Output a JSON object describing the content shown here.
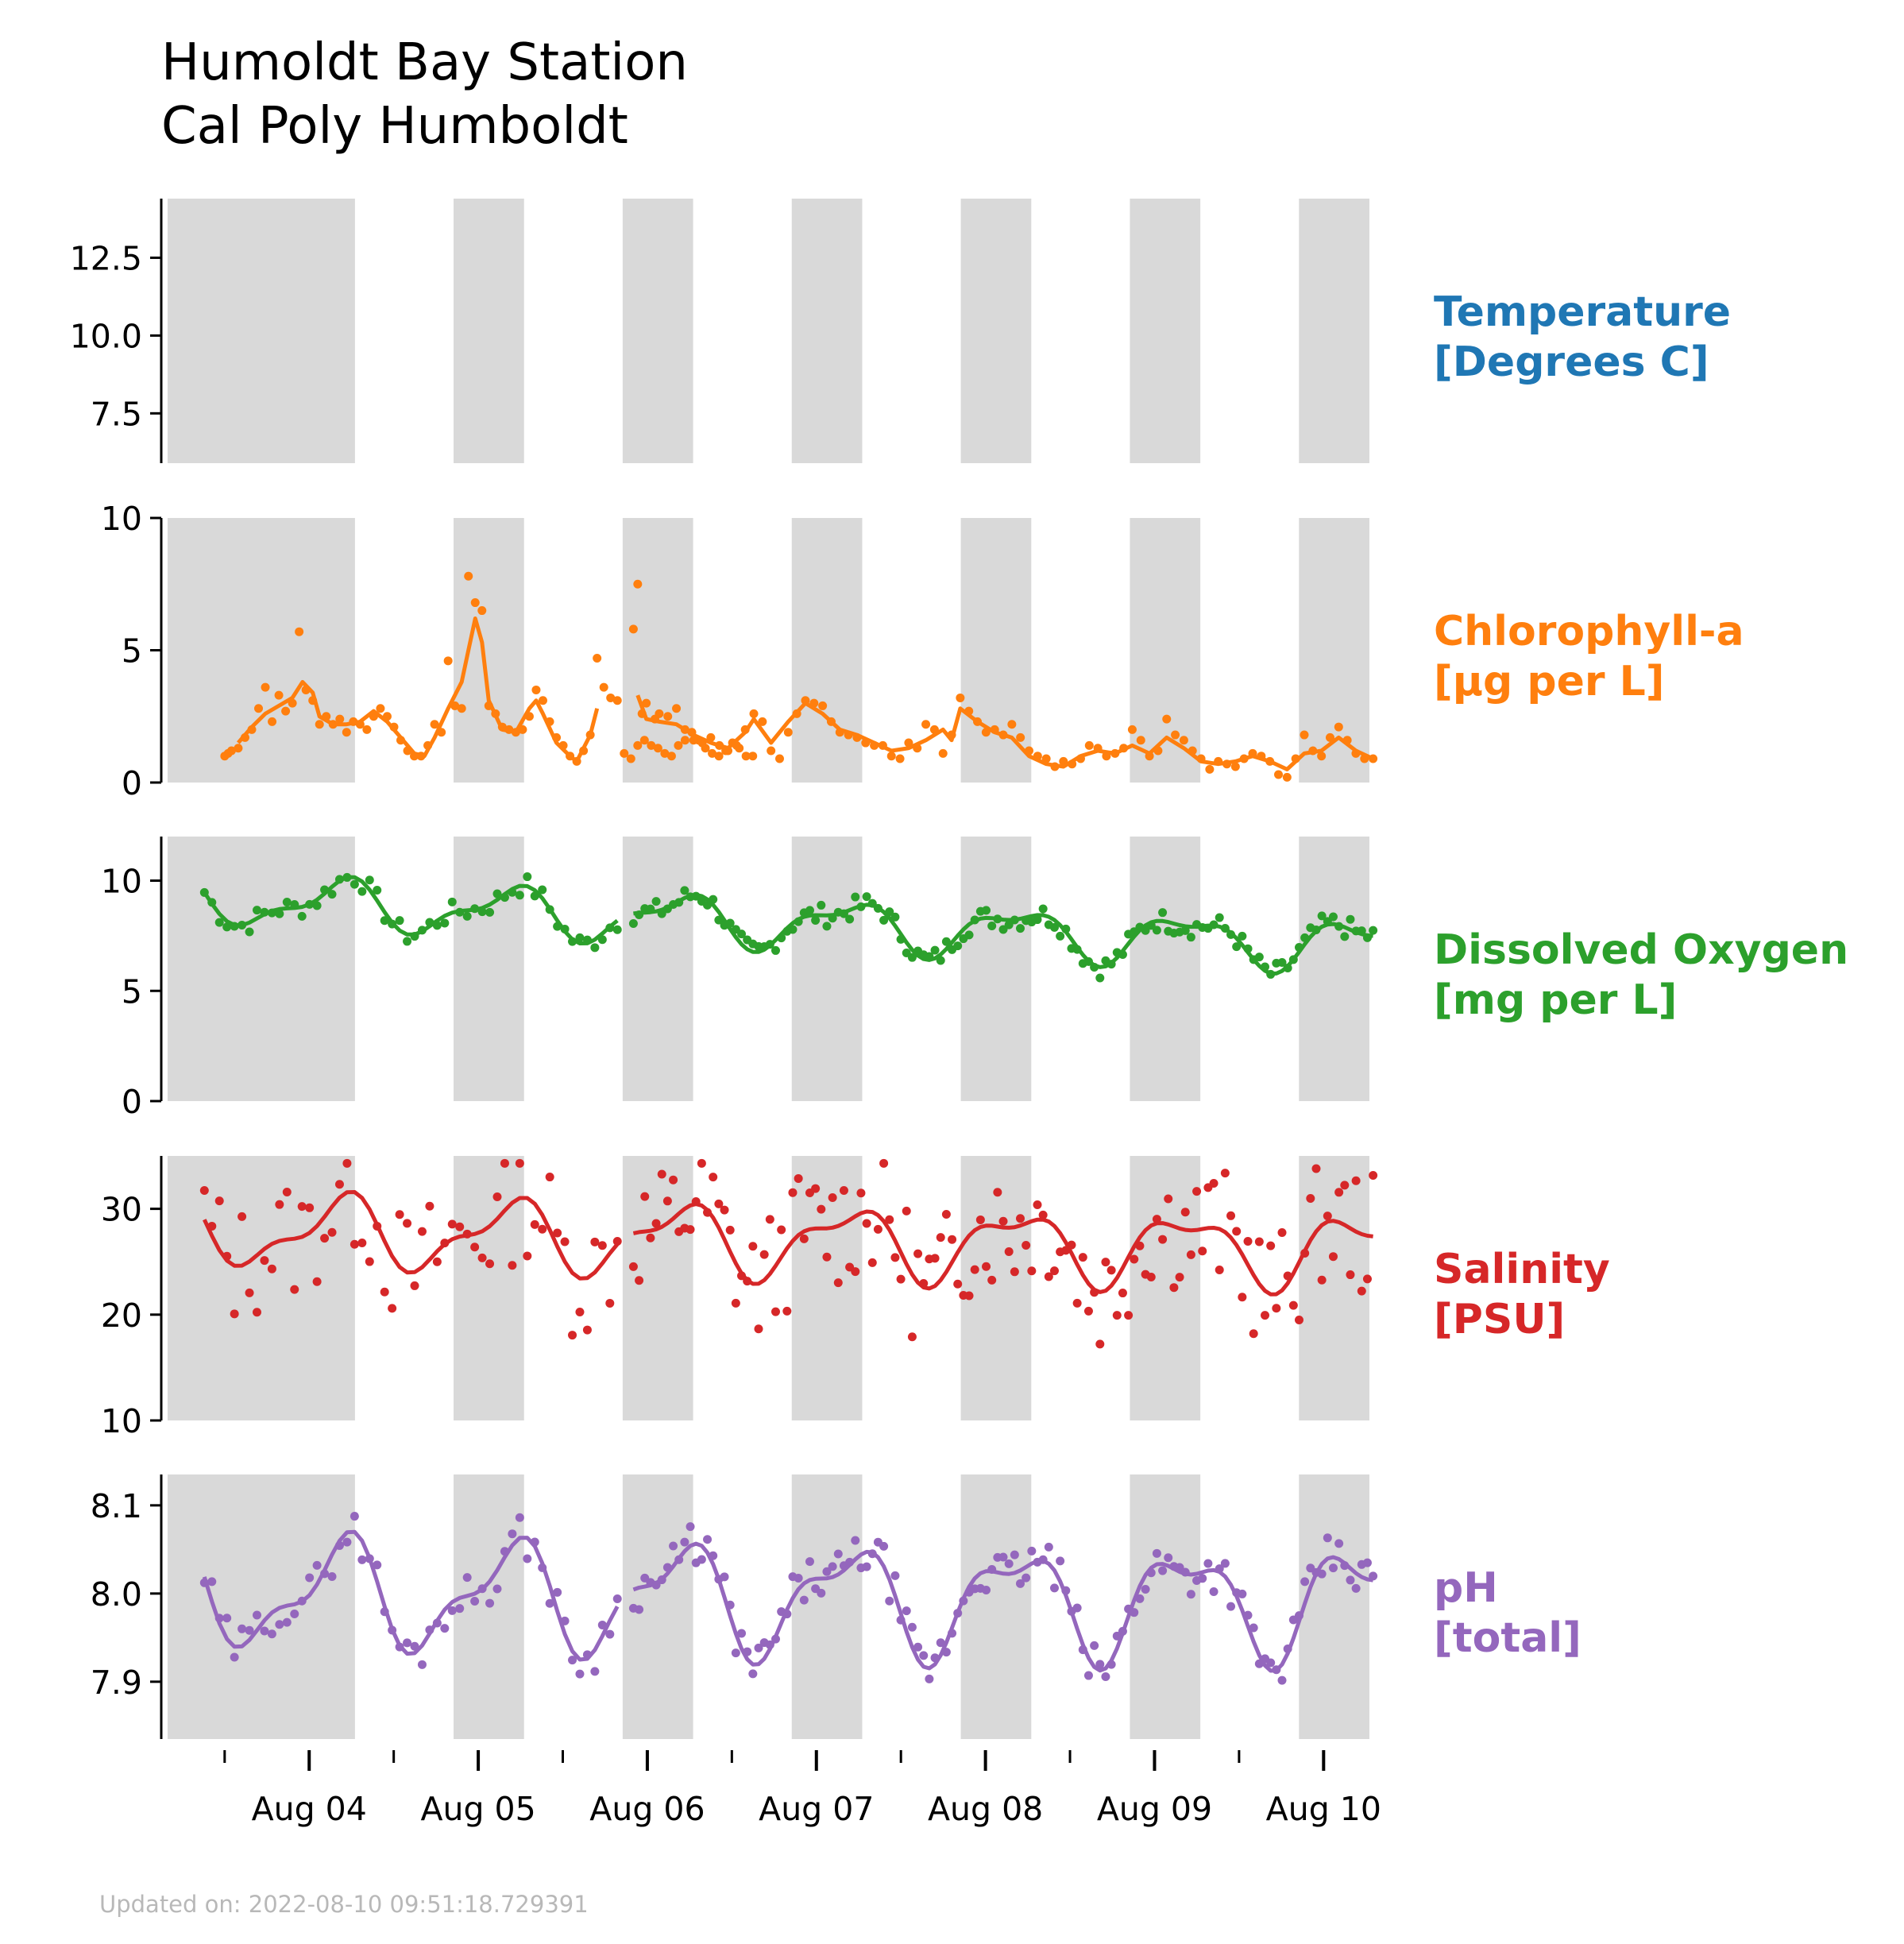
{
  "title_lines": [
    "Humoldt Bay Station",
    "Cal Poly Humboldt"
  ],
  "footer": "Updated on: 2022-08-10 09:51:18.729391",
  "chart_data": {
    "type": "line",
    "x_axis": {
      "ticks": [
        "Aug 04",
        "Aug 05",
        "Aug 06",
        "Aug 07",
        "Aug 08",
        "Aug 09",
        "Aug 10"
      ],
      "range": [
        "2022-08-03 03:00",
        "2022-08-10 10:00"
      ]
    },
    "night_bands": [
      [
        "2022-08-03 03:00",
        "2022-08-04 06:30"
      ],
      [
        "2022-08-04 20:30",
        "2022-08-05 06:30"
      ],
      [
        "2022-08-05 20:30",
        "2022-08-06 06:30"
      ],
      [
        "2022-08-06 20:30",
        "2022-08-07 06:30"
      ],
      [
        "2022-08-07 20:30",
        "2022-08-08 06:30"
      ],
      [
        "2022-08-08 20:30",
        "2022-08-09 06:30"
      ],
      [
        "2022-08-09 20:30",
        "2022-08-10 06:30"
      ]
    ],
    "panels": [
      {
        "label": [
          "Temperature",
          "[Degrees C]"
        ],
        "color": "#1f77b4",
        "ylim": [
          5.9,
          14.4
        ],
        "yticks": [
          7.5,
          10.0,
          12.5
        ],
        "tick_decimals": 1,
        "points": [],
        "smooth": []
      },
      {
        "label": [
          "Chlorophyll-a",
          "[µg per L]"
        ],
        "color": "#ff7f0e",
        "ylim": [
          0,
          10
        ],
        "yticks": [
          0,
          5,
          10
        ],
        "tick_decimals": 0,
        "points": [
          [
            3.0,
            1.0
          ],
          [
            3.5,
            1.1
          ],
          [
            4.0,
            1.2
          ],
          [
            5.0,
            1.3
          ],
          [
            6.0,
            1.7
          ],
          [
            7.0,
            2.0
          ],
          [
            8.0,
            2.8
          ],
          [
            9.0,
            3.6
          ],
          [
            10.0,
            2.3
          ],
          [
            11.0,
            3.3
          ],
          [
            12.0,
            2.7
          ],
          [
            13.0,
            3.0
          ],
          [
            14.0,
            5.7
          ],
          [
            15.0,
            3.5
          ],
          [
            16.0,
            3.1
          ],
          [
            17.0,
            2.2
          ],
          [
            18.0,
            2.5
          ],
          [
            19.0,
            2.2
          ],
          [
            20.0,
            2.4
          ],
          [
            21.0,
            1.9
          ],
          [
            22.0,
            2.3
          ],
          [
            23.0,
            2.2
          ],
          [
            24.0,
            2.0
          ],
          [
            25.0,
            2.5
          ],
          [
            26.0,
            2.8
          ],
          [
            27.0,
            2.5
          ],
          [
            28.0,
            2.1
          ],
          [
            29.0,
            1.6
          ],
          [
            30.0,
            1.2
          ],
          [
            31.0,
            1.0
          ],
          [
            32.0,
            1.0
          ],
          [
            33.0,
            1.4
          ],
          [
            34.0,
            2.2
          ],
          [
            35.0,
            1.9
          ],
          [
            36.0,
            4.6
          ],
          [
            37.0,
            2.9
          ],
          [
            38.0,
            2.8
          ],
          [
            39.0,
            7.8
          ],
          [
            40.0,
            6.8
          ],
          [
            41.0,
            6.5
          ],
          [
            42.0,
            2.9
          ],
          [
            43.0,
            2.6
          ],
          [
            44.0,
            2.1
          ],
          [
            45.0,
            2.0
          ],
          [
            46.0,
            1.9
          ],
          [
            47.0,
            2.0
          ],
          [
            48.0,
            2.5
          ],
          [
            49.0,
            3.5
          ],
          [
            50.0,
            3.1
          ],
          [
            51.0,
            2.3
          ],
          [
            52.0,
            1.7
          ],
          [
            53.0,
            1.4
          ],
          [
            54.0,
            1.0
          ],
          [
            55.0,
            0.8
          ],
          [
            56.0,
            1.2
          ],
          [
            57.0,
            1.8
          ],
          [
            58.0,
            4.7
          ],
          [
            59.0,
            3.6
          ],
          [
            60.0,
            3.2
          ],
          [
            61.0,
            3.1
          ],
          [
            62.0,
            1.1
          ],
          [
            63.0,
            0.9
          ],
          [
            64.0,
            1.4
          ],
          [
            65.0,
            1.6
          ],
          [
            66.0,
            1.4
          ],
          [
            67.0,
            1.3
          ],
          [
            68.0,
            1.1
          ],
          [
            69.0,
            1.0
          ],
          [
            70.0,
            1.4
          ],
          [
            71.0,
            1.6
          ],
          [
            72.0,
            1.9
          ],
          [
            73.0,
            1.6
          ],
          [
            74.0,
            1.3
          ],
          [
            75.0,
            1.1
          ],
          [
            76.0,
            1.0
          ],
          [
            77.0,
            1.2
          ],
          [
            78.0,
            1.5
          ],
          [
            79.0,
            1.3
          ],
          [
            80.0,
            1.0
          ],
          [
            81.0,
            1.0
          ]
        ],
        "smooth": [
          [
            5,
            1.5
          ],
          [
            7,
            2.1
          ],
          [
            9,
            2.6
          ],
          [
            11,
            2.9
          ],
          [
            13,
            3.2
          ],
          [
            14.5,
            3.8
          ],
          [
            16,
            3.4
          ],
          [
            17,
            2.5
          ],
          [
            19,
            2.2
          ],
          [
            21,
            2.2
          ],
          [
            23,
            2.3
          ],
          [
            25,
            2.7
          ],
          [
            27,
            2.3
          ],
          [
            29,
            1.7
          ],
          [
            31,
            1.1
          ],
          [
            32.5,
            1.0
          ],
          [
            34,
            1.7
          ],
          [
            36,
            2.8
          ],
          [
            38,
            3.8
          ],
          [
            39,
            5.0
          ],
          [
            40,
            6.2
          ],
          [
            41,
            5.3
          ],
          [
            42,
            3.1
          ],
          [
            44,
            2.0
          ],
          [
            46,
            1.9
          ],
          [
            48,
            2.8
          ],
          [
            49,
            3.1
          ],
          [
            50,
            2.6
          ],
          [
            52,
            1.5
          ],
          [
            54,
            1.0
          ],
          [
            55,
            0.8
          ],
          [
            57,
            1.8
          ],
          [
            58,
            2.8
          ]
        ],
        "points_b": [
          [
            0.0,
            5.8
          ],
          [
            0.5,
            7.5
          ],
          [
            1.0,
            2.6
          ],
          [
            1.5,
            3.0
          ],
          [
            2.5,
            2.4
          ],
          [
            3.0,
            2.6
          ],
          [
            4.0,
            2.5
          ],
          [
            5.0,
            2.8
          ],
          [
            6.0,
            2.0
          ],
          [
            7.0,
            1.6
          ],
          [
            8.0,
            1.5
          ],
          [
            9.0,
            1.7
          ],
          [
            10.0,
            1.4
          ],
          [
            11.0,
            1.2
          ],
          [
            12.0,
            1.4
          ],
          [
            13.0,
            2.0
          ],
          [
            14.0,
            2.6
          ],
          [
            15.0,
            2.3
          ],
          [
            16.0,
            1.2
          ],
          [
            17.0,
            0.9
          ],
          [
            18.0,
            1.9
          ],
          [
            19.0,
            2.6
          ],
          [
            20.0,
            3.1
          ],
          [
            21.0,
            3.0
          ],
          [
            22.0,
            2.9
          ],
          [
            23.0,
            2.3
          ],
          [
            24.0,
            1.9
          ],
          [
            25.0,
            1.8
          ],
          [
            26.0,
            1.7
          ],
          [
            27.0,
            1.5
          ],
          [
            28.0,
            1.4
          ],
          [
            29.0,
            1.4
          ],
          [
            30.0,
            1.0
          ],
          [
            31.0,
            0.9
          ],
          [
            32.0,
            1.5
          ],
          [
            33.0,
            1.3
          ],
          [
            34.0,
            2.2
          ],
          [
            35.0,
            2.0
          ],
          [
            36.0,
            1.1
          ],
          [
            37.0,
            1.8
          ],
          [
            38.0,
            3.2
          ],
          [
            39.0,
            2.7
          ],
          [
            40.0,
            2.3
          ],
          [
            41.0,
            1.9
          ],
          [
            42.0,
            2.0
          ],
          [
            43.0,
            1.8
          ],
          [
            44.0,
            2.2
          ],
          [
            45.0,
            1.7
          ],
          [
            46.0,
            1.2
          ],
          [
            47.0,
            1.0
          ],
          [
            48.0,
            0.9
          ],
          [
            49.0,
            0.6
          ],
          [
            50.0,
            0.8
          ],
          [
            51.0,
            0.7
          ],
          [
            52.0,
            0.9
          ],
          [
            53.0,
            1.4
          ],
          [
            54.0,
            1.3
          ],
          [
            55.0,
            1.0
          ],
          [
            56.0,
            1.1
          ],
          [
            57.0,
            1.3
          ],
          [
            58.0,
            2.0
          ],
          [
            59.0,
            1.6
          ],
          [
            60.0,
            1.0
          ],
          [
            61.0,
            1.2
          ],
          [
            62.0,
            2.4
          ],
          [
            63.0,
            1.8
          ],
          [
            64.0,
            1.6
          ],
          [
            65.0,
            1.2
          ],
          [
            66.0,
            0.9
          ],
          [
            67.0,
            0.5
          ],
          [
            68.0,
            0.8
          ],
          [
            69.0,
            0.7
          ],
          [
            70.0,
            0.6
          ],
          [
            71.0,
            0.9
          ],
          [
            72.0,
            1.1
          ],
          [
            73.0,
            1.0
          ],
          [
            74.0,
            0.8
          ],
          [
            75.0,
            0.3
          ],
          [
            76.0,
            0.2
          ],
          [
            77.0,
            0.9
          ],
          [
            78.0,
            1.8
          ],
          [
            79.0,
            1.2
          ],
          [
            80.0,
            1.0
          ],
          [
            81.0,
            1.7
          ],
          [
            82.0,
            2.1
          ],
          [
            83.0,
            1.6
          ],
          [
            84.0,
            1.1
          ],
          [
            85.0,
            0.9
          ],
          [
            86.0,
            0.9
          ]
        ],
        "smooth_b": [
          [
            0.5,
            3.3
          ],
          [
            1.5,
            2.4
          ],
          [
            3,
            2.3
          ],
          [
            5,
            2.2
          ],
          [
            7,
            1.8
          ],
          [
            9,
            1.5
          ],
          [
            11,
            1.3
          ],
          [
            13,
            1.9
          ],
          [
            14,
            2.4
          ],
          [
            16,
            1.5
          ],
          [
            18,
            2.3
          ],
          [
            20,
            3.0
          ],
          [
            22,
            2.6
          ],
          [
            24,
            2.0
          ],
          [
            26,
            1.8
          ],
          [
            28,
            1.5
          ],
          [
            30,
            1.2
          ],
          [
            32,
            1.3
          ],
          [
            34,
            1.6
          ],
          [
            36,
            2.0
          ],
          [
            37,
            1.6
          ],
          [
            38,
            2.8
          ],
          [
            40,
            2.3
          ],
          [
            42,
            1.9
          ],
          [
            44,
            1.7
          ],
          [
            46,
            1.0
          ],
          [
            48,
            0.7
          ],
          [
            50,
            0.6
          ],
          [
            52,
            1.0
          ],
          [
            54,
            1.2
          ],
          [
            56,
            1.1
          ],
          [
            58,
            1.4
          ],
          [
            60,
            1.1
          ],
          [
            62,
            1.7
          ],
          [
            64,
            1.3
          ],
          [
            66,
            0.8
          ],
          [
            68,
            0.7
          ],
          [
            70,
            0.8
          ],
          [
            72,
            1.0
          ],
          [
            74,
            0.8
          ],
          [
            76,
            0.5
          ],
          [
            78,
            1.1
          ],
          [
            80,
            1.2
          ],
          [
            82,
            1.7
          ],
          [
            84,
            1.2
          ],
          [
            86,
            0.9
          ]
        ]
      },
      {
        "label": [
          "Dissolved Oxygen",
          "[mg per L]"
        ],
        "color": "#2ca02c",
        "ylim": [
          0,
          12
        ],
        "yticks": [
          0,
          5,
          10
        ],
        "tick_decimals": 0,
        "points": [],
        "smooth": []
      },
      {
        "label": [
          "Salinity",
          "[PSU]"
        ],
        "color": "#d62728",
        "ylim": [
          10,
          35
        ],
        "yticks": [
          10,
          20,
          30
        ],
        "tick_decimals": 0,
        "points": [],
        "smooth": []
      },
      {
        "label": [
          "pH",
          "[total]"
        ],
        "color": "#9467bd",
        "ylim": [
          7.835,
          8.135
        ],
        "yticks": [
          7.9,
          8.0,
          8.1
        ],
        "tick_decimals": 1,
        "points": [],
        "smooth": []
      }
    ]
  }
}
